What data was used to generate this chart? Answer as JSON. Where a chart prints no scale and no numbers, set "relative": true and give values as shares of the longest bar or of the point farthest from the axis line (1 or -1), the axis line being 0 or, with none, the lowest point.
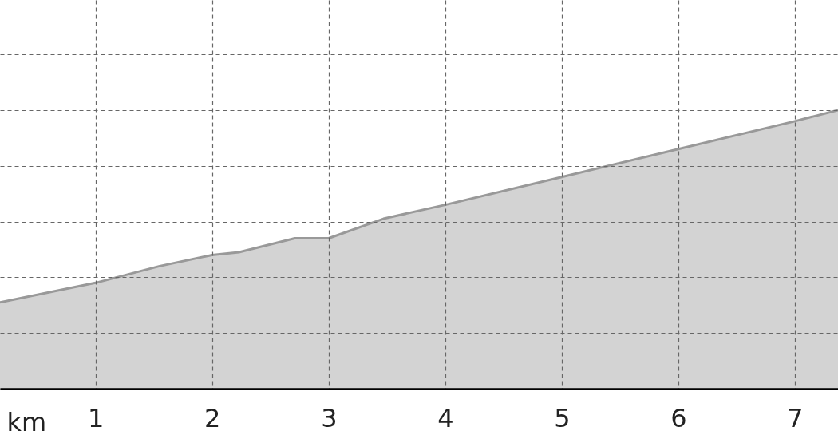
{
  "chart_data": {
    "type": "area",
    "relative": true,
    "xlabel": "km",
    "xlim": [
      0.18,
      7.37
    ],
    "xticks": [
      1,
      2,
      3,
      4,
      5,
      6,
      7
    ],
    "grid": true,
    "series": [
      {
        "color": "#d3d3d3",
        "x": [
          0.18,
          1.0,
          1.55,
          2.0,
          2.23,
          2.71,
          2.88,
          3.0,
          3.47,
          4.0,
          5.0,
          6.0,
          7.0,
          7.37
        ],
        "values": [
          0.31,
          0.38,
          0.44,
          0.48,
          0.49,
          0.54,
          0.54,
          0.54,
          0.61,
          0.66,
          0.76,
          0.86,
          0.96,
          1.0
        ]
      }
    ]
  }
}
